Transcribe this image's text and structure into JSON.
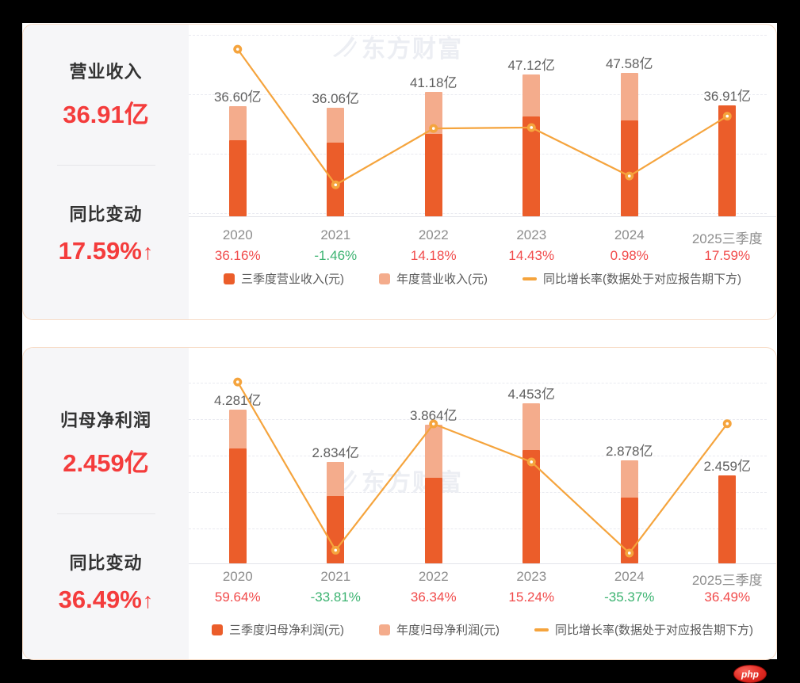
{
  "watermark": {
    "text": "东方财富"
  },
  "footer_logo": {
    "text": "php"
  },
  "panels": [
    {
      "metric_label": "营业收入",
      "metric_value": "36.91亿",
      "change_label": "同比变动",
      "change_value": "17.59%",
      "arrow": "↑"
    },
    {
      "metric_label": "归母净利润",
      "metric_value": "2.459亿",
      "change_label": "同比变动",
      "change_value": "36.49%",
      "arrow": "↑"
    }
  ],
  "chart_data": [
    {
      "type": "bar",
      "title": "营业收入",
      "categories": [
        "2020",
        "2021",
        "2022",
        "2023",
        "2024",
        "2025三季度"
      ],
      "series": [
        {
          "name": "三季度营业收入(元)",
          "type": "bar",
          "role": "quarter",
          "unit": "亿",
          "values": [
            25.1,
            24.4,
            27.3,
            33.2,
            31.8,
            36.91
          ]
        },
        {
          "name": "年度营业收入(元)",
          "type": "bar",
          "role": "annual",
          "unit": "亿",
          "values": [
            36.6,
            36.06,
            41.18,
            47.12,
            47.58,
            null
          ]
        },
        {
          "name": "同比增长率(数据处于对应报告期下方)",
          "type": "line",
          "role": "growth",
          "unit": "%",
          "values": [
            36.16,
            -1.46,
            14.18,
            14.43,
            0.98,
            17.59
          ]
        }
      ],
      "bar_value_labels": [
        "36.60亿",
        "36.06亿",
        "41.18亿",
        "47.12亿",
        "47.58亿",
        "36.91亿"
      ],
      "growth_value_labels": [
        "36.16%",
        "-1.46%",
        "14.18%",
        "14.43%",
        "0.98%",
        "17.59%"
      ],
      "ylim": [
        0,
        63.6
      ],
      "y2lim": [
        -10.2,
        43.0
      ],
      "grid": true,
      "legend_position": "bottom",
      "colors": {
        "quarter": "#EB5D2A",
        "annual": "#F4AC8C",
        "line": "#F5A43D",
        "positive": "#F14B4B",
        "negative": "#3CB371"
      }
    },
    {
      "type": "bar",
      "title": "归母净利润",
      "categories": [
        "2020",
        "2021",
        "2022",
        "2023",
        "2024",
        "2025三季度"
      ],
      "series": [
        {
          "name": "三季度归母净利润(元)",
          "type": "bar",
          "role": "quarter",
          "unit": "亿",
          "values": [
            3.2,
            1.87,
            2.38,
            3.15,
            1.82,
            2.459
          ]
        },
        {
          "name": "年度归母净利润(元)",
          "type": "bar",
          "role": "annual",
          "unit": "亿",
          "values": [
            4.281,
            2.834,
            3.864,
            4.453,
            2.878,
            null
          ]
        },
        {
          "name": "同比增长率(数据处于对应报告期下方)",
          "type": "line",
          "role": "growth",
          "unit": "%",
          "values": [
            59.64,
            -33.81,
            36.34,
            15.24,
            -35.37,
            36.49
          ]
        }
      ],
      "bar_value_labels": [
        "4.281亿",
        "2.834亿",
        "3.864亿",
        "4.453亿",
        "2.878亿",
        "2.459亿"
      ],
      "growth_value_labels": [
        "59.64%",
        "-33.81%",
        "36.34%",
        "15.24%",
        "-35.37%",
        "36.49%"
      ],
      "ylim": [
        0,
        6.0
      ],
      "y2lim": [
        -41.1,
        78.6
      ],
      "grid": true,
      "legend_position": "bottom",
      "colors": {
        "quarter": "#EB5D2A",
        "annual": "#F4AC8C",
        "line": "#F5A43D",
        "positive": "#F14B4B",
        "negative": "#3CB371"
      }
    }
  ]
}
